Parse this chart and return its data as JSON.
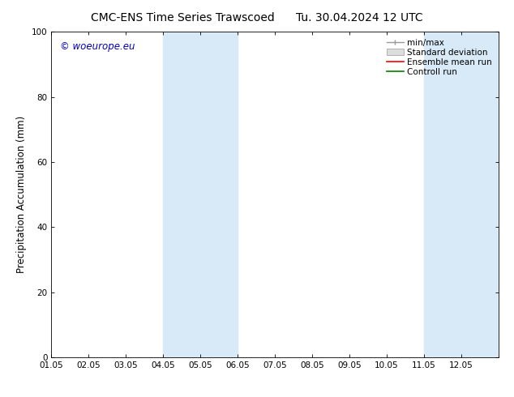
{
  "title_left": "CMC-ENS Time Series Trawscoed",
  "title_right": "Tu. 30.04.2024 12 UTC",
  "ylabel": "Precipitation Accumulation (mm)",
  "xlabel": "",
  "ylim": [
    0,
    100
  ],
  "xlim": [
    0,
    12
  ],
  "xtick_labels": [
    "01.05",
    "02.05",
    "03.05",
    "04.05",
    "05.05",
    "06.05",
    "07.05",
    "08.05",
    "09.05",
    "10.05",
    "11.05",
    "12.05"
  ],
  "xtick_positions": [
    0,
    1,
    2,
    3,
    4,
    5,
    6,
    7,
    8,
    9,
    10,
    11
  ],
  "ytick_labels": [
    "0",
    "20",
    "40",
    "60",
    "80",
    "100"
  ],
  "ytick_positions": [
    0,
    20,
    40,
    60,
    80,
    100
  ],
  "shaded_bands": [
    {
      "x_start": 3,
      "x_end": 4,
      "color": "#d8eaf7"
    },
    {
      "x_start": 4,
      "x_end": 5,
      "color": "#d8eaf7"
    },
    {
      "x_start": 10,
      "x_end": 11,
      "color": "#d8eaf7"
    },
    {
      "x_start": 11,
      "x_end": 12,
      "color": "#d8eaf7"
    }
  ],
  "watermark_text": "© woeurope.eu",
  "watermark_color": "#0000bb",
  "legend_items": [
    {
      "label": "min/max",
      "color": "#aaaaaa",
      "style": "line_with_caps"
    },
    {
      "label": "Standard deviation",
      "color": "#cccccc",
      "style": "rect"
    },
    {
      "label": "Ensemble mean run",
      "color": "#ff0000",
      "style": "line"
    },
    {
      "label": "Controll run",
      "color": "#008000",
      "style": "line"
    }
  ],
  "background_color": "#ffffff",
  "title_fontsize": 10,
  "tick_fontsize": 7.5,
  "ylabel_fontsize": 8.5,
  "legend_fontsize": 7.5,
  "watermark_fontsize": 8.5
}
